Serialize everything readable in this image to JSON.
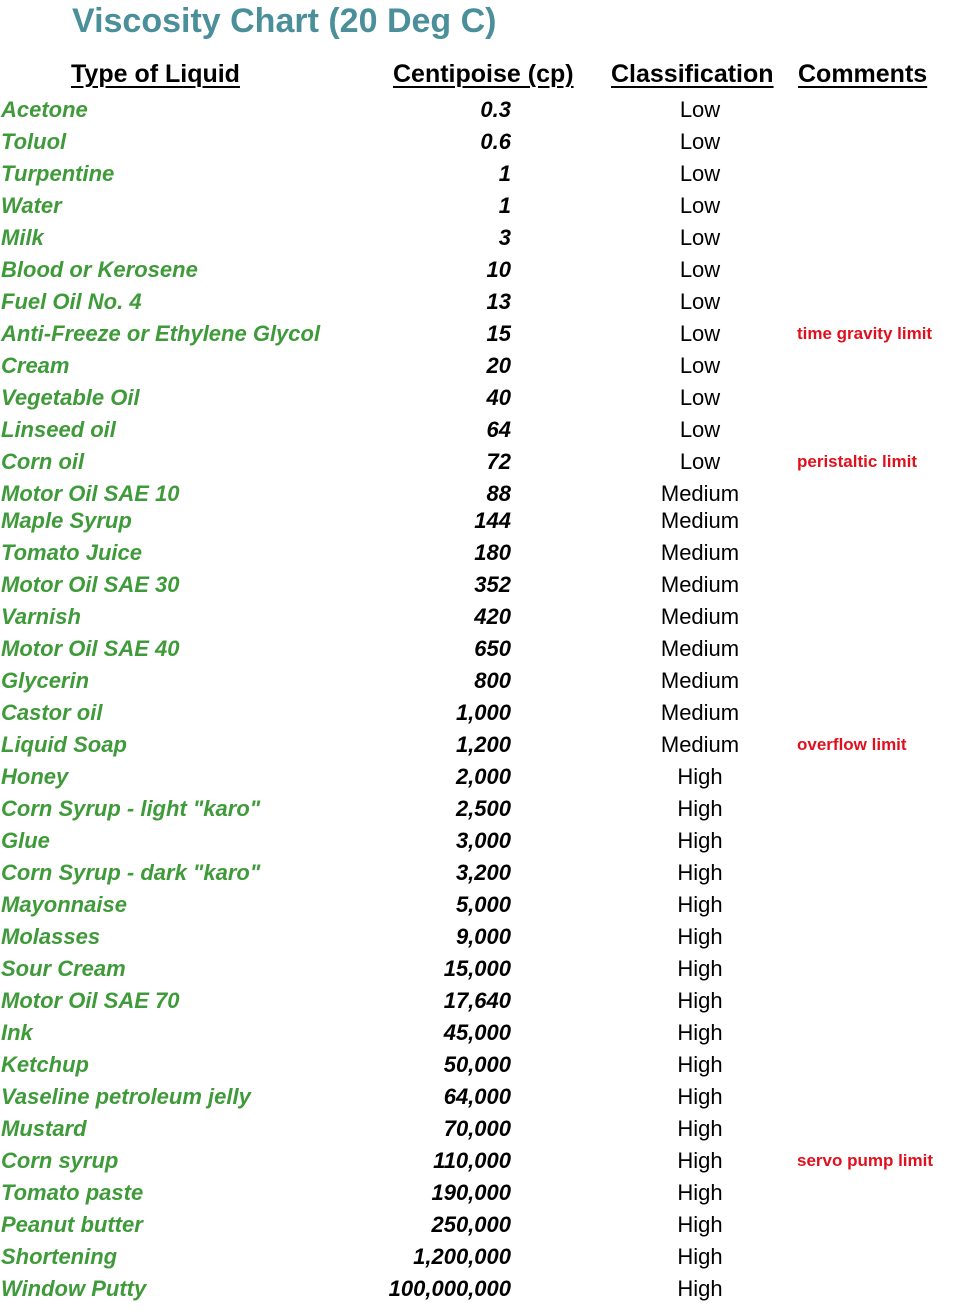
{
  "title": "Viscosity Chart (20 Deg C)",
  "headers": {
    "liquid": "Type of Liquid",
    "cp": "Centipoise (cp)",
    "classification": "Classification",
    "comments": "Comments"
  },
  "colors": {
    "title": "#4a8f9a",
    "liquid": "#3f9a3a",
    "comment": "#e0101e"
  },
  "rows": [
    {
      "liquid": "Acetone",
      "cp": "0.3",
      "classification": "Low",
      "comment": ""
    },
    {
      "liquid": "Toluol",
      "cp": "0.6",
      "classification": "Low",
      "comment": ""
    },
    {
      "liquid": "Turpentine",
      "cp": "1",
      "classification": "Low",
      "comment": ""
    },
    {
      "liquid": "Water",
      "cp": "1",
      "classification": "Low",
      "comment": ""
    },
    {
      "liquid": "Milk",
      "cp": "3",
      "classification": "Low",
      "comment": ""
    },
    {
      "liquid": "Blood or Kerosene",
      "cp": "10",
      "classification": "Low",
      "comment": ""
    },
    {
      "liquid": "Fuel Oil No. 4",
      "cp": "13",
      "classification": "Low",
      "comment": ""
    },
    {
      "liquid": "Anti-Freeze or Ethylene Glycol",
      "cp": "15",
      "classification": "Low",
      "comment": "time gravity limit"
    },
    {
      "liquid": "Cream",
      "cp": "20",
      "classification": "Low",
      "comment": ""
    },
    {
      "liquid": "Vegetable Oil",
      "cp": "40",
      "classification": "Low",
      "comment": ""
    },
    {
      "liquid": "Linseed oil",
      "cp": "64",
      "classification": "Low",
      "comment": ""
    },
    {
      "liquid": "Corn oil",
      "cp": "72",
      "classification": "Low",
      "comment": "peristaltic limit"
    },
    {
      "liquid": "Motor Oil SAE 10",
      "cp": "88",
      "classification": "Medium",
      "comment": ""
    },
    {
      "liquid": "Maple Syrup",
      "cp": "144",
      "classification": "Medium",
      "comment": ""
    },
    {
      "liquid": "Tomato Juice",
      "cp": "180",
      "classification": "Medium",
      "comment": ""
    },
    {
      "liquid": "Motor Oil SAE 30",
      "cp": "352",
      "classification": "Medium",
      "comment": ""
    },
    {
      "liquid": "Varnish",
      "cp": "420",
      "classification": "Medium",
      "comment": ""
    },
    {
      "liquid": "Motor Oil SAE 40",
      "cp": "650",
      "classification": "Medium",
      "comment": ""
    },
    {
      "liquid": "Glycerin",
      "cp": "800",
      "classification": "Medium",
      "comment": ""
    },
    {
      "liquid": "Castor oil",
      "cp": "1,000",
      "classification": "Medium",
      "comment": ""
    },
    {
      "liquid": "Liquid Soap",
      "cp": "1,200",
      "classification": "Medium",
      "comment": "overflow limit"
    },
    {
      "liquid": "Honey",
      "cp": "2,000",
      "classification": "High",
      "comment": ""
    },
    {
      "liquid": "Corn Syrup - light \"karo\"",
      "cp": "2,500",
      "classification": "High",
      "comment": ""
    },
    {
      "liquid": "Glue",
      "cp": "3,000",
      "classification": "High",
      "comment": ""
    },
    {
      "liquid": "Corn Syrup - dark \"karo\"",
      "cp": "3,200",
      "classification": "High",
      "comment": ""
    },
    {
      "liquid": "Mayonnaise",
      "cp": "5,000",
      "classification": "High",
      "comment": ""
    },
    {
      "liquid": "Molasses",
      "cp": "9,000",
      "classification": "High",
      "comment": ""
    },
    {
      "liquid": "Sour Cream",
      "cp": "15,000",
      "classification": "High",
      "comment": ""
    },
    {
      "liquid": "Motor Oil SAE 70",
      "cp": "17,640",
      "classification": "High",
      "comment": ""
    },
    {
      "liquid": "Ink",
      "cp": "45,000",
      "classification": "High",
      "comment": ""
    },
    {
      "liquid": "Ketchup",
      "cp": "50,000",
      "classification": "High",
      "comment": ""
    },
    {
      "liquid": "Vaseline petroleum jelly",
      "cp": "64,000",
      "classification": "High",
      "comment": ""
    },
    {
      "liquid": "Mustard",
      "cp": "70,000",
      "classification": "High",
      "comment": ""
    },
    {
      "liquid": "Corn syrup",
      "cp": "110,000",
      "classification": "High",
      "comment": "servo pump limit"
    },
    {
      "liquid": "Tomato paste",
      "cp": "190,000",
      "classification": "High",
      "comment": ""
    },
    {
      "liquid": "Peanut butter",
      "cp": "250,000",
      "classification": "High",
      "comment": ""
    },
    {
      "liquid": "Shortening",
      "cp": "1,200,000",
      "classification": "High",
      "comment": ""
    },
    {
      "liquid": "Window Putty",
      "cp": "100,000,000",
      "classification": "High",
      "comment": ""
    }
  ]
}
